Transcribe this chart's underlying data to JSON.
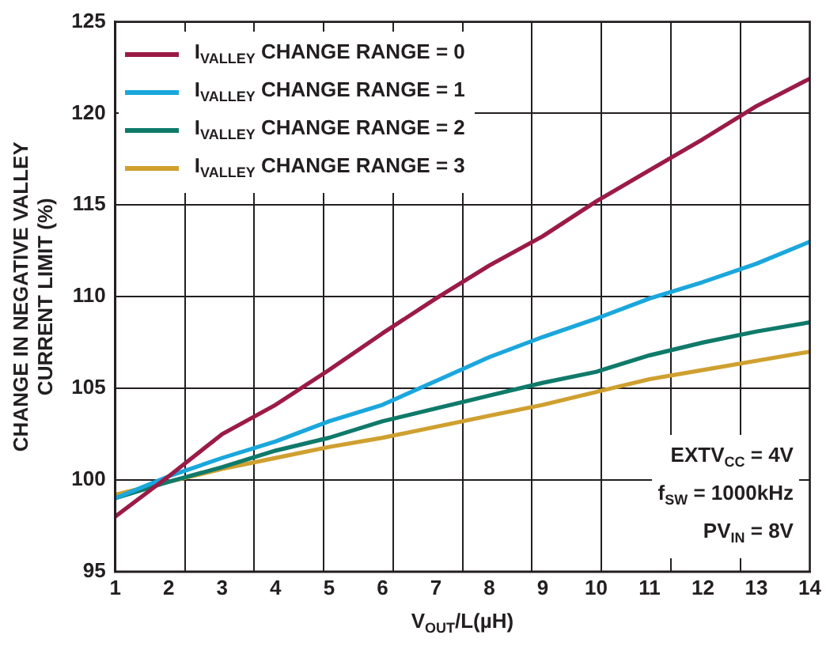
{
  "chart_data": {
    "type": "line",
    "xlabel": "V$_{OUT}$/L(µH)",
    "ylabel": "CHANGE IN NEGATIVE VALLEY\nCURRENT LIMIT (%)",
    "x": [
      1,
      2,
      3,
      4,
      5,
      6,
      7,
      8,
      9,
      10,
      11,
      12,
      13,
      14
    ],
    "series": [
      {
        "name": "I$_{VALLEY}$ CHANGE RANGE = 0",
        "color": "#9b1b46",
        "values": [
          98.0,
          100.2,
          102.5,
          104.1,
          106.0,
          108.0,
          109.9,
          111.7,
          113.3,
          115.2,
          116.9,
          118.6,
          120.4,
          121.9
        ]
      },
      {
        "name": "I$_{VALLEY}$ CHANGE RANGE = 1",
        "color": "#1aa7dc",
        "values": [
          99.0,
          100.2,
          101.2,
          102.1,
          103.2,
          104.1,
          105.4,
          106.7,
          107.8,
          108.8,
          109.9,
          110.8,
          111.8,
          113.0
        ]
      },
      {
        "name": "I$_{VALLEY}$ CHANGE RANGE = 2",
        "color": "#0f7a6a",
        "values": [
          99.0,
          99.9,
          100.7,
          101.6,
          102.3,
          103.2,
          103.9,
          104.6,
          105.3,
          105.9,
          106.8,
          107.5,
          108.1,
          108.6
        ]
      },
      {
        "name": "I$_{VALLEY}$ CHANGE RANGE = 3",
        "color": "#cfa030",
        "values": [
          99.2,
          99.9,
          100.6,
          101.2,
          101.8,
          102.3,
          102.9,
          103.5,
          104.1,
          104.8,
          105.5,
          106.0,
          106.5,
          107.0
        ]
      }
    ],
    "xlim": [
      1,
      14
    ],
    "xticks": [
      1,
      2,
      {
        "value": 2.3,
        "label": null
      },
      3,
      {
        "value": 3.6,
        "label": null
      },
      4,
      {
        "value": 4.9,
        "label": null
      },
      5,
      6,
      {
        "value": 6.2,
        "label": null
      },
      7,
      {
        "value": 7.5,
        "label": null
      },
      8,
      {
        "value": 8.8,
        "label": null
      },
      9,
      10,
      {
        "value": 10.1,
        "label": null
      },
      11,
      {
        "value": 11.4,
        "label": null
      },
      12,
      {
        "value": 12.7,
        "label": null
      },
      13,
      14
    ],
    "ylim": [
      95,
      125
    ],
    "yticks": [
      95,
      100,
      105,
      110,
      115,
      120,
      125
    ],
    "grid": true,
    "legend": "top left",
    "marker": "none",
    "line_style": "solid",
    "annotations": [
      "EXTV$_{CC}$ = 4V",
      "f$_{SW}$ = 1000kHz",
      "PV$_{IN}$ = 8V"
    ]
  }
}
